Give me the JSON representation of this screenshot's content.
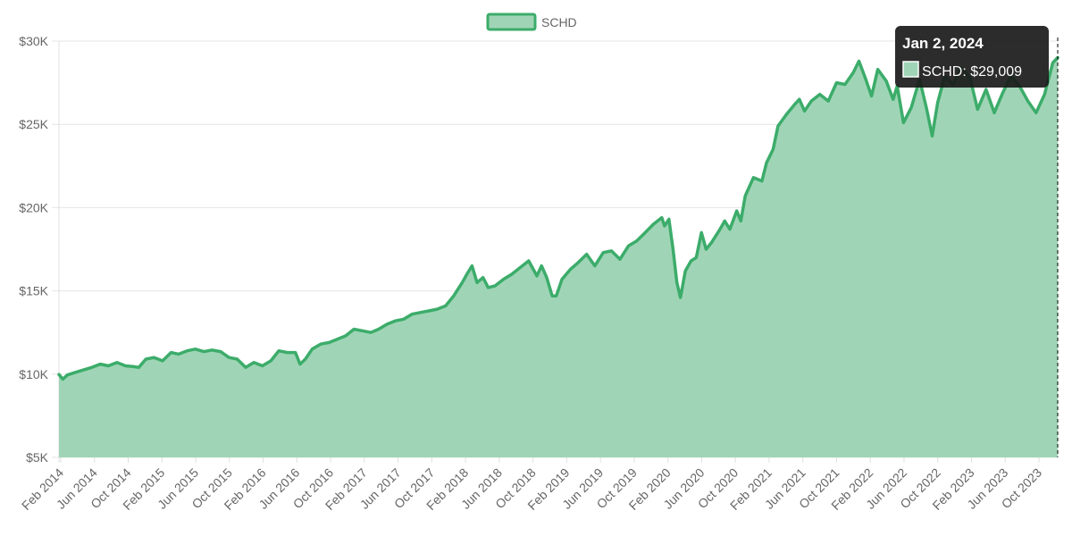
{
  "chart_data": {
    "type": "area",
    "x_tick_labels": [
      "Feb 2014",
      "Jun 2014",
      "Oct 2014",
      "Feb 2015",
      "Jun 2015",
      "Oct 2015",
      "Feb 2016",
      "Jun 2016",
      "Oct 2016",
      "Feb 2017",
      "Jun 2017",
      "Oct 2017",
      "Feb 2018",
      "Jun 2018",
      "Oct 2018",
      "Feb 2019",
      "Jun 2019",
      "Oct 2019",
      "Feb 2020",
      "Jun 2020",
      "Oct 2020",
      "Feb 2021",
      "Jun 2021",
      "Oct 2021",
      "Feb 2022",
      "Jun 2022",
      "Oct 2022",
      "Feb 2023",
      "Jun 2023",
      "Oct 2023"
    ],
    "y_tick_labels": [
      "$5K",
      "$10K",
      "$15K",
      "$20K",
      "$25K",
      "$30K"
    ],
    "y_ticks": [
      5000,
      10000,
      15000,
      20000,
      25000,
      30000
    ],
    "ylim": [
      5000,
      30000
    ],
    "xlim": [
      "2014-01-01",
      "2024-01-02"
    ],
    "grid": true,
    "legend_position": "top-center",
    "series": [
      {
        "name": "SCHD",
        "line_color": "#3cac6a",
        "fill_color": "#9fd5b6",
        "points": [
          [
            "2014-01-01",
            9980
          ],
          [
            "2014-01-15",
            9700
          ],
          [
            "2014-02-01",
            9950
          ],
          [
            "2014-03-01",
            10100
          ],
          [
            "2014-04-01",
            10250
          ],
          [
            "2014-05-01",
            10400
          ],
          [
            "2014-06-01",
            10600
          ],
          [
            "2014-07-01",
            10500
          ],
          [
            "2014-08-01",
            10700
          ],
          [
            "2014-09-01",
            10500
          ],
          [
            "2014-10-01",
            10450
          ],
          [
            "2014-10-20",
            10400
          ],
          [
            "2014-11-15",
            10900
          ],
          [
            "2014-12-15",
            11000
          ],
          [
            "2015-01-15",
            10800
          ],
          [
            "2015-02-15",
            11300
          ],
          [
            "2015-03-15",
            11200
          ],
          [
            "2015-04-15",
            11400
          ],
          [
            "2015-05-15",
            11500
          ],
          [
            "2015-06-15",
            11350
          ],
          [
            "2015-07-15",
            11450
          ],
          [
            "2015-08-15",
            11350
          ],
          [
            "2015-09-15",
            11000
          ],
          [
            "2015-10-15",
            10900
          ],
          [
            "2015-11-15",
            10400
          ],
          [
            "2015-12-15",
            10700
          ],
          [
            "2016-01-15",
            10500
          ],
          [
            "2016-02-15",
            10800
          ],
          [
            "2016-03-15",
            11400
          ],
          [
            "2016-04-15",
            11300
          ],
          [
            "2016-05-15",
            11300
          ],
          [
            "2016-06-01",
            10600
          ],
          [
            "2016-06-20",
            10900
          ],
          [
            "2016-07-15",
            11500
          ],
          [
            "2016-08-15",
            11800
          ],
          [
            "2016-09-15",
            11900
          ],
          [
            "2016-10-15",
            12100
          ],
          [
            "2016-11-15",
            12300
          ],
          [
            "2016-12-15",
            12700
          ],
          [
            "2017-01-15",
            12600
          ],
          [
            "2017-02-15",
            12500
          ],
          [
            "2017-03-15",
            12700
          ],
          [
            "2017-04-15",
            13000
          ],
          [
            "2017-05-15",
            13200
          ],
          [
            "2017-06-15",
            13300
          ],
          [
            "2017-07-15",
            13600
          ],
          [
            "2017-08-15",
            13700
          ],
          [
            "2017-09-15",
            13800
          ],
          [
            "2017-10-15",
            13900
          ],
          [
            "2017-11-15",
            14100
          ],
          [
            "2017-12-15",
            14700
          ],
          [
            "2018-01-15",
            15500
          ],
          [
            "2018-02-01",
            16000
          ],
          [
            "2018-02-20",
            16500
          ],
          [
            "2018-03-10",
            15500
          ],
          [
            "2018-04-01",
            15800
          ],
          [
            "2018-04-20",
            15200
          ],
          [
            "2018-05-15",
            15300
          ],
          [
            "2018-06-15",
            15700
          ],
          [
            "2018-07-15",
            16000
          ],
          [
            "2018-08-15",
            16400
          ],
          [
            "2018-09-15",
            16800
          ],
          [
            "2018-10-15",
            15900
          ],
          [
            "2018-11-01",
            16500
          ],
          [
            "2018-11-20",
            15800
          ],
          [
            "2018-12-10",
            14700
          ],
          [
            "2018-12-25",
            14700
          ],
          [
            "2019-01-15",
            15700
          ],
          [
            "2019-02-15",
            16300
          ],
          [
            "2019-03-15",
            16700
          ],
          [
            "2019-04-15",
            17200
          ],
          [
            "2019-05-15",
            16500
          ],
          [
            "2019-06-15",
            17300
          ],
          [
            "2019-07-15",
            17400
          ],
          [
            "2019-08-15",
            16900
          ],
          [
            "2019-09-15",
            17700
          ],
          [
            "2019-10-15",
            18000
          ],
          [
            "2019-11-15",
            18500
          ],
          [
            "2019-12-15",
            19000
          ],
          [
            "2020-01-15",
            19400
          ],
          [
            "2020-01-25",
            18900
          ],
          [
            "2020-02-10",
            19300
          ],
          [
            "2020-02-25",
            17500
          ],
          [
            "2020-03-10",
            15500
          ],
          [
            "2020-03-23",
            14600
          ],
          [
            "2020-04-10",
            16200
          ],
          [
            "2020-05-01",
            16800
          ],
          [
            "2020-05-20",
            17000
          ],
          [
            "2020-06-08",
            18500
          ],
          [
            "2020-06-25",
            17500
          ],
          [
            "2020-07-15",
            17900
          ],
          [
            "2020-08-15",
            18700
          ],
          [
            "2020-09-01",
            19200
          ],
          [
            "2020-09-20",
            18700
          ],
          [
            "2020-10-15",
            19800
          ],
          [
            "2020-10-30",
            19200
          ],
          [
            "2020-11-15",
            20700
          ],
          [
            "2020-12-15",
            21800
          ],
          [
            "2021-01-15",
            21600
          ],
          [
            "2021-02-01",
            22700
          ],
          [
            "2021-02-25",
            23500
          ],
          [
            "2021-03-15",
            24900
          ],
          [
            "2021-04-15",
            25600
          ],
          [
            "2021-05-15",
            26200
          ],
          [
            "2021-06-01",
            26500
          ],
          [
            "2021-06-20",
            25800
          ],
          [
            "2021-07-15",
            26400
          ],
          [
            "2021-08-15",
            26800
          ],
          [
            "2021-09-15",
            26400
          ],
          [
            "2021-10-15",
            27500
          ],
          [
            "2021-11-15",
            27400
          ],
          [
            "2021-12-15",
            28100
          ],
          [
            "2022-01-05",
            28800
          ],
          [
            "2022-01-30",
            27700
          ],
          [
            "2022-02-20",
            26700
          ],
          [
            "2022-03-15",
            28300
          ],
          [
            "2022-04-15",
            27600
          ],
          [
            "2022-05-10",
            26500
          ],
          [
            "2022-05-25",
            27300
          ],
          [
            "2022-06-17",
            25100
          ],
          [
            "2022-07-15",
            26000
          ],
          [
            "2022-08-15",
            27700
          ],
          [
            "2022-09-10",
            25900
          ],
          [
            "2022-09-30",
            24300
          ],
          [
            "2022-10-20",
            26300
          ],
          [
            "2022-11-15",
            27900
          ],
          [
            "2022-12-15",
            27400
          ],
          [
            "2023-01-15",
            28400
          ],
          [
            "2023-02-15",
            27800
          ],
          [
            "2023-03-15",
            25900
          ],
          [
            "2023-04-15",
            27100
          ],
          [
            "2023-05-15",
            25700
          ],
          [
            "2023-06-15",
            26900
          ],
          [
            "2023-07-15",
            27900
          ],
          [
            "2023-08-15",
            27300
          ],
          [
            "2023-09-15",
            26400
          ],
          [
            "2023-10-15",
            25700
          ],
          [
            "2023-11-15",
            26800
          ],
          [
            "2023-12-15",
            28700
          ],
          [
            "2024-01-02",
            29009
          ]
        ]
      }
    ],
    "tooltip": {
      "title": "Jan 2, 2024",
      "label": "SCHD: $29,009"
    }
  }
}
